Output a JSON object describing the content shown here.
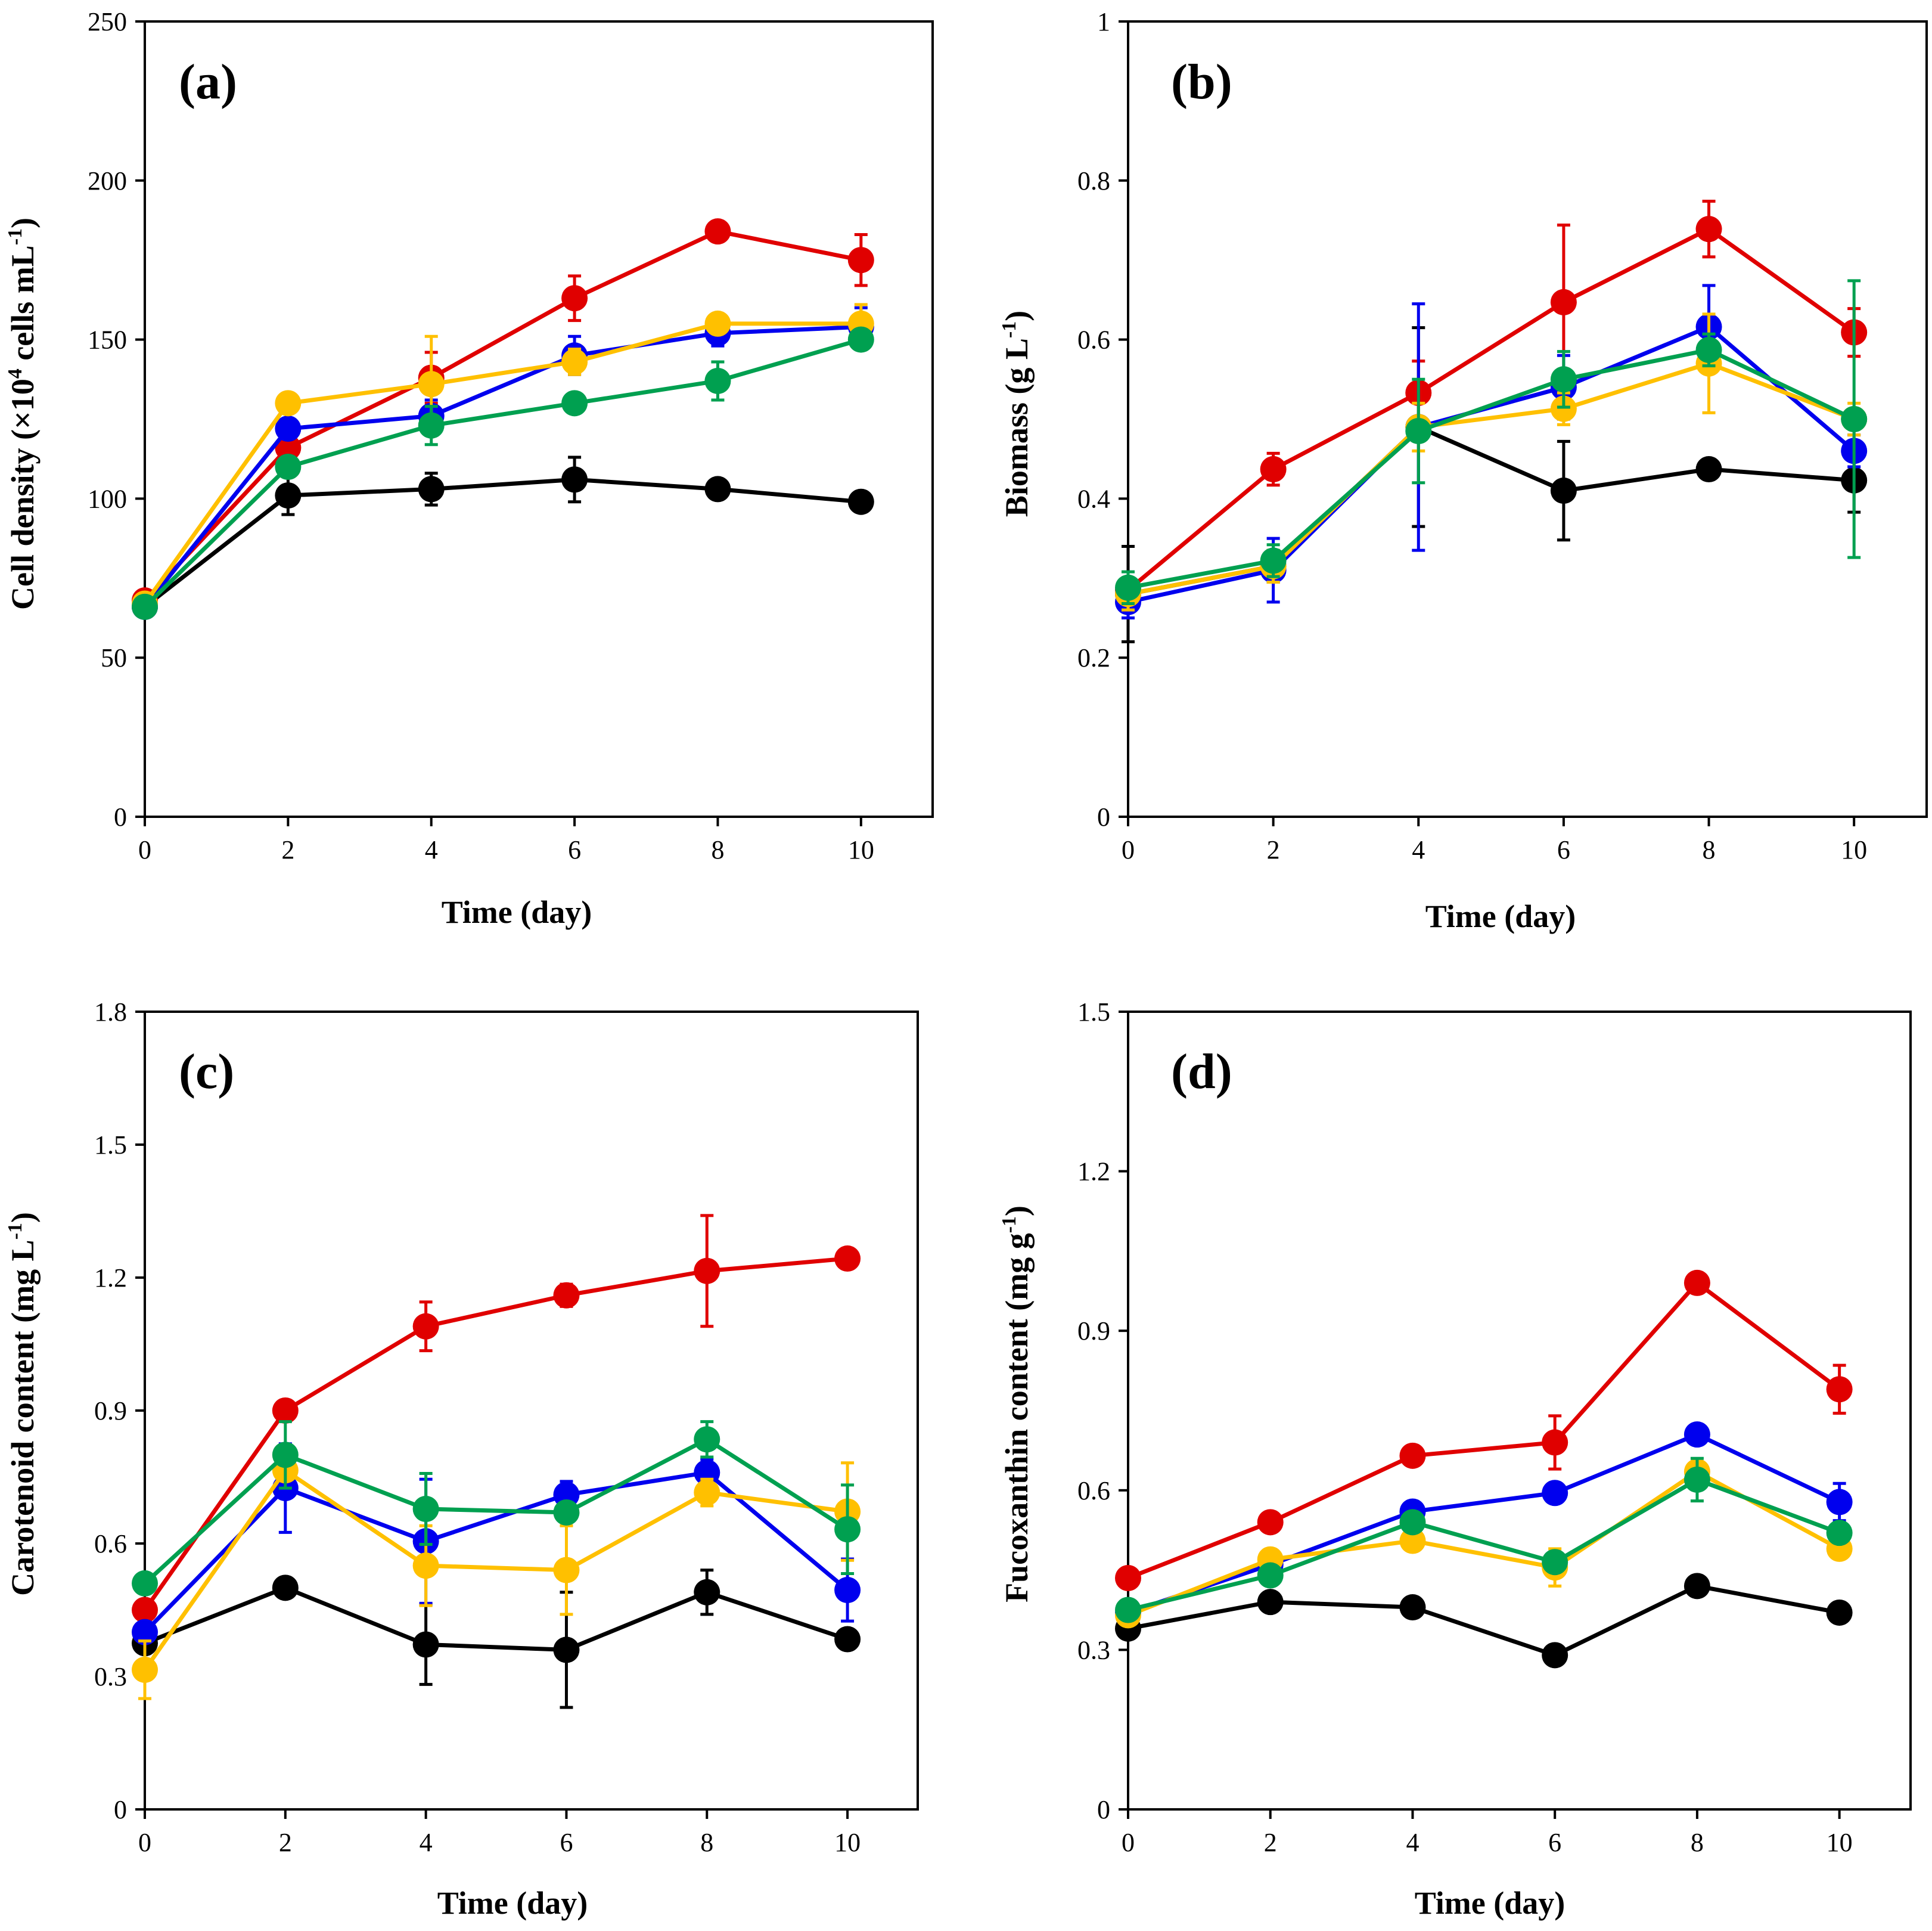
{
  "figure": {
    "panel_count": 4
  },
  "series_colors": [
    "#000000",
    "#e00000",
    "#0000ee",
    "#ffc000",
    "#00a050"
  ],
  "chart_data": [
    {
      "type": "line",
      "panel_label": "(a)",
      "xlabel": "Time (day)",
      "ylabel_main": "Cell density (×10",
      "ylabel_sup": "4",
      "ylabel_mid": " cells mL",
      "ylabel_sup2": "-1",
      "ylabel_tail": ")",
      "xlim": [
        0,
        11
      ],
      "ylim": [
        0,
        250
      ],
      "xticks": [
        0,
        2,
        4,
        6,
        8,
        10
      ],
      "xtick_labels": [
        "0",
        "2",
        "4",
        "6",
        "8",
        "10"
      ],
      "yticks": [
        0,
        50,
        100,
        150,
        200,
        250
      ],
      "ytick_labels": [
        "0",
        "50",
        "100",
        "150",
        "200",
        "250"
      ],
      "x": [
        0,
        2,
        4,
        6,
        8,
        10
      ],
      "series": [
        {
          "name": "black",
          "color": "#000000",
          "values": [
            66,
            101,
            103,
            106,
            103,
            99
          ],
          "errors": [
            2,
            6,
            5,
            7,
            2,
            2
          ]
        },
        {
          "name": "red",
          "color": "#e00000",
          "values": [
            68,
            116,
            138,
            163,
            184,
            175
          ],
          "errors": [
            2,
            4,
            8,
            7,
            2,
            8
          ]
        },
        {
          "name": "blue",
          "color": "#0000ee",
          "values": [
            66,
            122,
            126,
            145,
            152,
            154
          ],
          "errors": [
            2,
            3,
            5,
            6,
            4,
            6
          ]
        },
        {
          "name": "yellow",
          "color": "#ffc000",
          "values": [
            67,
            130,
            136,
            143,
            155,
            155
          ],
          "errors": [
            2,
            3,
            15,
            4,
            2,
            6
          ]
        },
        {
          "name": "green",
          "color": "#00a050",
          "values": [
            66,
            110,
            123,
            130,
            137,
            150
          ],
          "errors": [
            2,
            3,
            6,
            3,
            6,
            2
          ]
        }
      ]
    },
    {
      "type": "line",
      "panel_label": "(b)",
      "xlabel": "Time (day)",
      "ylabel_main": "Biomass (g L",
      "ylabel_sup": "-1",
      "ylabel_mid": "",
      "ylabel_sup2": "",
      "ylabel_tail": ")",
      "xlim": [
        0,
        11
      ],
      "ylim": [
        0,
        1
      ],
      "xticks": [
        0,
        2,
        4,
        6,
        8,
        10
      ],
      "xtick_labels": [
        "0",
        "2",
        "4",
        "6",
        "8",
        "10"
      ],
      "yticks": [
        0,
        0.2,
        0.4,
        0.6,
        0.8,
        1
      ],
      "ytick_labels": [
        "0",
        "0.2",
        "0.4",
        "0.6",
        "0.8",
        "1"
      ],
      "x": [
        0,
        2,
        4,
        6,
        8,
        10
      ],
      "series": [
        {
          "name": "black",
          "color": "#000000",
          "values": [
            0.28,
            0.315,
            0.49,
            0.41,
            0.437,
            0.423
          ],
          "errors": [
            0.06,
            0.02,
            0.125,
            0.062,
            0.01,
            0.04
          ]
        },
        {
          "name": "red",
          "color": "#e00000",
          "values": [
            0.285,
            0.437,
            0.533,
            0.647,
            0.739,
            0.609
          ],
          "errors": [
            0.01,
            0.02,
            0.04,
            0.097,
            0.035,
            0.03
          ]
        },
        {
          "name": "blue",
          "color": "#0000ee",
          "values": [
            0.27,
            0.31,
            0.49,
            0.54,
            0.616,
            0.46
          ],
          "errors": [
            0.02,
            0.04,
            0.155,
            0.04,
            0.052,
            0.02
          ]
        },
        {
          "name": "yellow",
          "color": "#ffc000",
          "values": [
            0.28,
            0.315,
            0.49,
            0.513,
            0.57,
            0.5
          ],
          "errors": [
            0.02,
            0.02,
            0.03,
            0.02,
            0.062,
            0.02
          ]
        },
        {
          "name": "green",
          "color": "#00a050",
          "values": [
            0.288,
            0.322,
            0.485,
            0.55,
            0.587,
            0.5
          ],
          "errors": [
            0.02,
            0.02,
            0.065,
            0.035,
            0.02,
            0.174
          ]
        }
      ]
    },
    {
      "type": "line",
      "panel_label": "(c)",
      "xlabel": "Time (day)",
      "ylabel_main": "Carotenoid content (mg L",
      "ylabel_sup": "-1",
      "ylabel_mid": "",
      "ylabel_sup2": "",
      "ylabel_tail": ")",
      "xlim": [
        0,
        11
      ],
      "ylim": [
        0,
        1.8
      ],
      "xticks": [
        0,
        2,
        4,
        6,
        8,
        10
      ],
      "xtick_labels": [
        "0",
        "2",
        "4",
        "6",
        "8",
        "10"
      ],
      "yticks": [
        0,
        0.3,
        0.6,
        0.9,
        1.2,
        1.5,
        1.8
      ],
      "ytick_labels": [
        "0",
        "0.3",
        "0.6",
        "0.9",
        "1.2",
        "1.5",
        "1.8"
      ],
      "x": [
        0,
        2,
        4,
        6,
        8,
        10
      ],
      "series": [
        {
          "name": "black",
          "color": "#000000",
          "values": [
            0.375,
            0.5,
            0.372,
            0.36,
            0.49,
            0.384
          ],
          "errors": [
            0.02,
            0.02,
            0.09,
            0.13,
            0.05,
            0.02
          ]
        },
        {
          "name": "red",
          "color": "#e00000",
          "values": [
            0.45,
            0.9,
            1.09,
            1.16,
            1.215,
            1.243
          ],
          "errors": [
            0.02,
            0.02,
            0.055,
            0.025,
            0.125,
            0.02
          ]
        },
        {
          "name": "blue",
          "color": "#0000ee",
          "values": [
            0.4,
            0.725,
            0.605,
            0.71,
            0.76,
            0.495
          ],
          "errors": [
            0.02,
            0.1,
            0.14,
            0.03,
            0.03,
            0.07
          ]
        },
        {
          "name": "yellow",
          "color": "#ffc000",
          "values": [
            0.315,
            0.765,
            0.55,
            0.54,
            0.715,
            0.672
          ],
          "errors": [
            0.065,
            0.02,
            0.09,
            0.1,
            0.03,
            0.11
          ]
        },
        {
          "name": "green",
          "color": "#00a050",
          "values": [
            0.51,
            0.8,
            0.678,
            0.67,
            0.835,
            0.632
          ],
          "errors": [
            0.02,
            0.075,
            0.08,
            0.02,
            0.04,
            0.1
          ]
        }
      ]
    },
    {
      "type": "line",
      "panel_label": "(d)",
      "xlabel": "Time (day)",
      "ylabel_main": "Fucoxanthin content (mg g",
      "ylabel_sup": "-1",
      "ylabel_mid": "",
      "ylabel_sup2": "",
      "ylabel_tail": ")",
      "xlim": [
        0,
        11
      ],
      "ylim": [
        0,
        1.5
      ],
      "xticks": [
        0,
        2,
        4,
        6,
        8,
        10
      ],
      "xtick_labels": [
        "0",
        "2",
        "4",
        "6",
        "8",
        "10"
      ],
      "yticks": [
        0,
        0.3,
        0.6,
        0.9,
        1.2,
        1.5
      ],
      "ytick_labels": [
        "0",
        "0.3",
        "0.6",
        "0.9",
        "1.2",
        "1.5"
      ],
      "x": [
        0,
        2,
        4,
        6,
        8,
        10
      ],
      "series": [
        {
          "name": "black",
          "color": "#000000",
          "values": [
            0.34,
            0.39,
            0.38,
            0.29,
            0.42,
            0.37
          ],
          "errors": [
            0.01,
            0.01,
            0.01,
            0.01,
            0.01,
            0.01
          ]
        },
        {
          "name": "red",
          "color": "#e00000",
          "values": [
            0.435,
            0.54,
            0.665,
            0.69,
            0.99,
            0.79
          ],
          "errors": [
            0.01,
            0.01,
            0.01,
            0.05,
            0.01,
            0.045
          ]
        },
        {
          "name": "blue",
          "color": "#0000ee",
          "values": [
            0.37,
            0.46,
            0.56,
            0.595,
            0.705,
            0.578
          ],
          "errors": [
            0.01,
            0.01,
            0.01,
            0.01,
            0.01,
            0.035
          ]
        },
        {
          "name": "yellow",
          "color": "#ffc000",
          "values": [
            0.365,
            0.47,
            0.505,
            0.455,
            0.635,
            0.49
          ],
          "errors": [
            0.01,
            0.01,
            0.01,
            0.035,
            0.01,
            0.01
          ]
        },
        {
          "name": "green",
          "color": "#00a050",
          "values": [
            0.375,
            0.44,
            0.54,
            0.465,
            0.62,
            0.52
          ],
          "errors": [
            0.01,
            0.01,
            0.01,
            0.01,
            0.04,
            0.01
          ]
        }
      ]
    }
  ]
}
